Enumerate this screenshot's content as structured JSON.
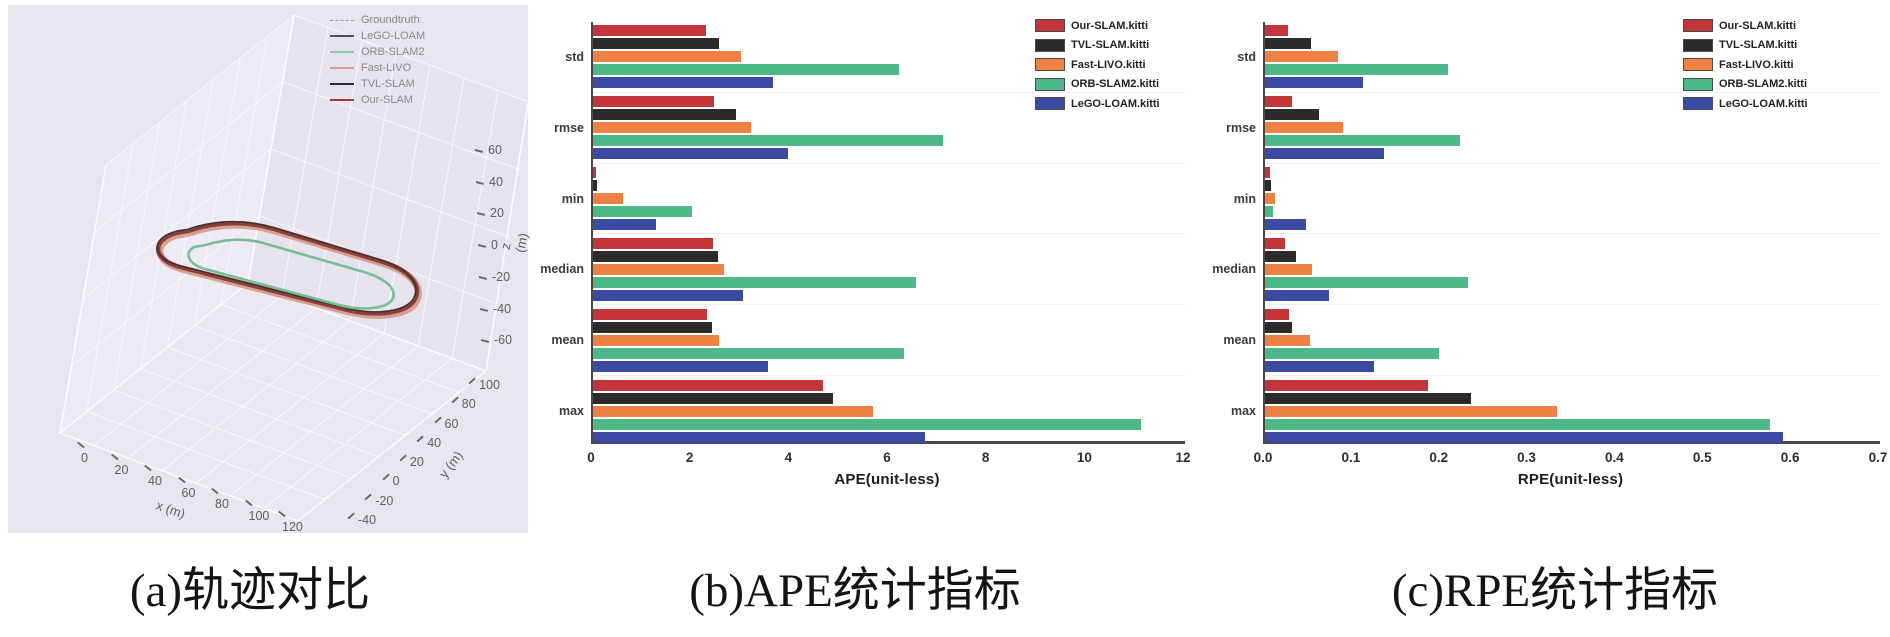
{
  "captions": {
    "a": "(a)轨迹对比",
    "b": "(b)APE统计指标",
    "c": "(c)RPE统计指标"
  },
  "panel_a": {
    "legend": [
      {
        "label": "Groundtruth",
        "color": "#9a9a9a",
        "style": "dashed"
      },
      {
        "label": "LeGO-LOAM",
        "color": "#4a5366",
        "style": "solid"
      },
      {
        "label": "ORB-SLAM2",
        "color": "#8cc7a5",
        "style": "solid"
      },
      {
        "label": "Fast-LIVO",
        "color": "#dd9b8c",
        "style": "solid"
      },
      {
        "label": "TVL-SLAM",
        "color": "#2b2b2b",
        "style": "solid"
      },
      {
        "label": "Our-SLAM",
        "color": "#a23b36",
        "style": "solid"
      }
    ],
    "x_axis": {
      "label": "x (m)",
      "ticks": [
        "0",
        "20",
        "40",
        "60",
        "80",
        "100",
        "120"
      ]
    },
    "y_axis": {
      "label": "y (m)",
      "ticks": [
        "-40",
        "-20",
        "0",
        "20",
        "40",
        "60",
        "80",
        "100"
      ]
    },
    "z_axis": {
      "label": "z (m)",
      "ticks": [
        "60",
        "40",
        "20",
        "0",
        "-20",
        "-40",
        "-60"
      ]
    }
  },
  "chart_data": [
    {
      "type": "line",
      "subtype": "3d-trajectory",
      "series": [
        {
          "name": "Groundtruth"
        },
        {
          "name": "LeGO-LOAM"
        },
        {
          "name": "ORB-SLAM2"
        },
        {
          "name": "Fast-LIVO"
        },
        {
          "name": "TVL-SLAM"
        },
        {
          "name": "Our-SLAM"
        }
      ],
      "xlabel": "x (m)",
      "ylabel": "y (m)",
      "zlabel": "z (m)",
      "xlim": [
        0,
        120
      ],
      "ylim": [
        -40,
        100
      ],
      "zlim": [
        -60,
        60
      ],
      "description": "Closed rounded-rectangle loop trajectories near z=0; ORB-SLAM2 loop lies inside the tightly overlapping Groundtruth/LeGO-LOAM/Fast-LIVO/TVL-SLAM/Our-SLAM loops"
    },
    {
      "type": "bar",
      "orientation": "horizontal",
      "xlabel": "APE(unit-less)",
      "xlim": [
        0,
        12
      ],
      "xticks": [
        0,
        2,
        4,
        6,
        8,
        10,
        12
      ],
      "xtick_labels": [
        "0",
        "2",
        "4",
        "6",
        "8",
        "10",
        "12"
      ],
      "categories": [
        "std",
        "rmse",
        "min",
        "median",
        "mean",
        "max"
      ],
      "series": [
        {
          "name": "Our-SLAM.kitti",
          "color": "#c23538",
          "values": [
            2.3,
            2.45,
            0.07,
            2.43,
            2.32,
            4.67
          ]
        },
        {
          "name": "TVL-SLAM.kitti",
          "color": "#2d2a2a",
          "values": [
            2.55,
            2.9,
            0.09,
            2.54,
            2.41,
            4.86
          ]
        },
        {
          "name": "Fast-LIVO.kitti",
          "color": "#ee8245",
          "values": [
            3.0,
            3.2,
            0.6,
            2.66,
            2.56,
            5.67
          ]
        },
        {
          "name": "ORB-SLAM2.kitti",
          "color": "#4eb888",
          "values": [
            6.2,
            7.1,
            2.0,
            6.55,
            6.3,
            11.1
          ]
        },
        {
          "name": "LeGO-LOAM.kitti",
          "color": "#3b4aa2",
          "values": [
            3.65,
            3.95,
            1.28,
            3.05,
            3.54,
            6.73
          ]
        }
      ],
      "legend_position": "upper right",
      "grid": false
    },
    {
      "type": "bar",
      "orientation": "horizontal",
      "xlabel": "RPE(unit-less)",
      "xlim": [
        0,
        0.7
      ],
      "xticks": [
        0,
        0.1,
        0.2,
        0.3,
        0.4,
        0.5,
        0.6,
        0.7
      ],
      "xtick_labels": [
        "0.0",
        "0.1",
        "0.2",
        "0.3",
        "0.4",
        "0.5",
        "0.6",
        "0.7"
      ],
      "categories": [
        "std",
        "rmse",
        "min",
        "median",
        "mean",
        "max"
      ],
      "series": [
        {
          "name": "Our-SLAM.kitti",
          "color": "#c23538",
          "values": [
            0.026,
            0.031,
            0.006,
            0.023,
            0.027,
            0.186
          ]
        },
        {
          "name": "TVL-SLAM.kitti",
          "color": "#2d2a2a",
          "values": [
            0.052,
            0.062,
            0.007,
            0.035,
            0.031,
            0.235
          ]
        },
        {
          "name": "Fast-LIVO.kitti",
          "color": "#ee8245",
          "values": [
            0.083,
            0.089,
            0.011,
            0.053,
            0.051,
            0.332
          ]
        },
        {
          "name": "ORB-SLAM2.kitti",
          "color": "#4eb888",
          "values": [
            0.208,
            0.222,
            0.009,
            0.231,
            0.198,
            0.575
          ]
        },
        {
          "name": "LeGO-LOAM.kitti",
          "color": "#3b4aa2",
          "values": [
            0.111,
            0.135,
            0.047,
            0.073,
            0.124,
            0.59
          ]
        }
      ],
      "legend_position": "upper right",
      "grid": false
    }
  ]
}
